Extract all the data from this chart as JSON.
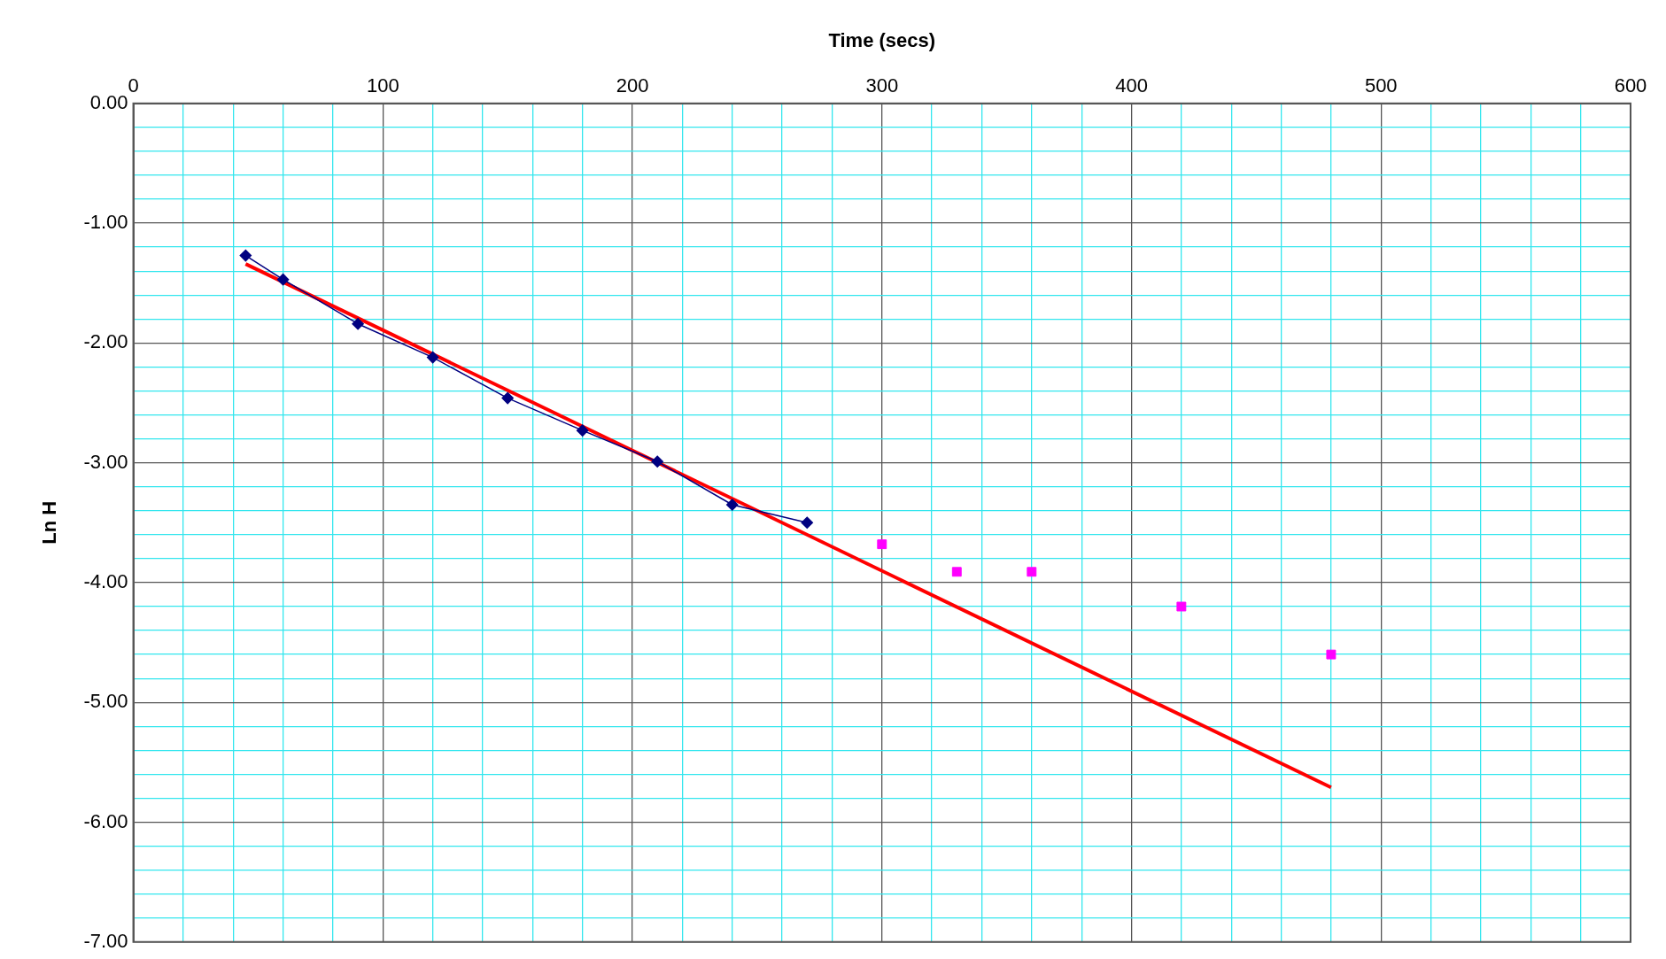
{
  "chart_data": {
    "type": "line",
    "xlabel": "Time (secs)",
    "ylabel": "Ln H",
    "xlim": [
      0,
      600
    ],
    "ylim": [
      -7,
      0
    ],
    "grid": true,
    "legend": false,
    "xticks": [
      0,
      {
        "value": 20,
        "label": null
      },
      {
        "value": 40,
        "label": null
      },
      {
        "value": 60,
        "label": null
      },
      {
        "value": 80,
        "label": null
      },
      100,
      {
        "value": 120,
        "label": null
      },
      {
        "value": 140,
        "label": null
      },
      {
        "value": 160,
        "label": null
      },
      {
        "value": 180,
        "label": null
      },
      200,
      {
        "value": 220,
        "label": null
      },
      {
        "value": 240,
        "label": null
      },
      {
        "value": 260,
        "label": null
      },
      {
        "value": 280,
        "label": null
      },
      300,
      {
        "value": 320,
        "label": null
      },
      {
        "value": 340,
        "label": null
      },
      {
        "value": 360,
        "label": null
      },
      {
        "value": 380,
        "label": null
      },
      400,
      {
        "value": 420,
        "label": null
      },
      {
        "value": 440,
        "label": null
      },
      {
        "value": 460,
        "label": null
      },
      {
        "value": 480,
        "label": null
      },
      500,
      {
        "value": 520,
        "label": null
      },
      {
        "value": 540,
        "label": null
      },
      {
        "value": 560,
        "label": null
      },
      {
        "value": 580,
        "label": null
      },
      600
    ],
    "yticks": [
      {
        "value": 0,
        "label": "0.00"
      },
      {
        "value": -0.2,
        "label": null
      },
      {
        "value": -0.4,
        "label": null
      },
      {
        "value": -0.6,
        "label": null
      },
      {
        "value": -0.8,
        "label": null
      },
      {
        "value": -1,
        "label": "-1.00"
      },
      {
        "value": -1.2,
        "label": null
      },
      {
        "value": -1.4,
        "label": null
      },
      {
        "value": -1.6,
        "label": null
      },
      {
        "value": -1.8,
        "label": null
      },
      {
        "value": -2,
        "label": "-2.00"
      },
      {
        "value": -2.2,
        "label": null
      },
      {
        "value": -2.4,
        "label": null
      },
      {
        "value": -2.6,
        "label": null
      },
      {
        "value": -2.8,
        "label": null
      },
      {
        "value": -3,
        "label": "-3.00"
      },
      {
        "value": -3.2,
        "label": null
      },
      {
        "value": -3.4,
        "label": null
      },
      {
        "value": -3.6,
        "label": null
      },
      {
        "value": -3.8,
        "label": null
      },
      {
        "value": -4,
        "label": "-4.00"
      },
      {
        "value": -4.2,
        "label": null
      },
      {
        "value": -4.4,
        "label": null
      },
      {
        "value": -4.6,
        "label": null
      },
      {
        "value": -4.8,
        "label": null
      },
      {
        "value": -5,
        "label": "-5.00"
      },
      {
        "value": -5.2,
        "label": null
      },
      {
        "value": -5.4,
        "label": null
      },
      {
        "value": -5.6,
        "label": null
      },
      {
        "value": -5.8,
        "label": null
      },
      {
        "value": -6,
        "label": "-6.00"
      },
      {
        "value": -6.2,
        "label": null
      },
      {
        "value": -6.4,
        "label": null
      },
      {
        "value": -6.6,
        "label": null
      },
      {
        "value": -6.8,
        "label": null
      },
      {
        "value": -7,
        "label": "-7.00"
      }
    ],
    "series": [
      {
        "type": "line",
        "marker": "diamond",
        "line_style": "solid",
        "color": "#000080",
        "x": [
          45,
          60,
          90,
          120,
          150,
          180,
          210,
          240,
          270
        ],
        "values": [
          -1.27,
          -1.47,
          -1.84,
          -2.12,
          -2.46,
          -2.73,
          -2.99,
          -3.35,
          -3.5
        ]
      },
      {
        "type": "scatter",
        "marker": "square",
        "color": "#ff00ff",
        "x": [
          300,
          330,
          360,
          420,
          480
        ],
        "values": [
          -3.68,
          -3.91,
          -3.91,
          -4.2,
          -4.6
        ]
      },
      {
        "type": "line",
        "marker": "none",
        "line_style": "solid",
        "color": "#ff0000",
        "x": [
          45,
          480
        ],
        "values": [
          -1.34,
          -5.71
        ]
      }
    ]
  }
}
